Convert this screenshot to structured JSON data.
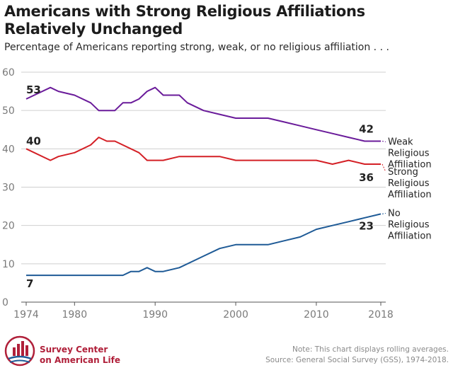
{
  "title": "Americans with Strong Religious Affiliations Relatively Unchanged",
  "subtitle": "Percentage of Americans reporting strong, weak, or no religious affiliation . . .",
  "logo": {
    "line1": "Survey Center",
    "line2": "on American Life"
  },
  "note": "Note: This chart displays rolling averages.",
  "source": "Source: General Social Survey (GSS), 1974-2018.",
  "colors": {
    "weak": "#6a1b9a",
    "strong": "#d42026",
    "none": "#1e5a96",
    "grid": "#cfcfcf",
    "axis_text": "#7a7a7a",
    "brand": "#b0203a"
  },
  "chart_data": {
    "type": "line",
    "title": "Americans with Strong Religious Affiliations Relatively Unchanged",
    "subtitle": "Percentage of Americans reporting strong, weak, or no religious affiliation . . .",
    "xlim": [
      1974,
      2018
    ],
    "ylim": [
      0,
      60
    ],
    "x_ticks": [
      1974,
      1980,
      1990,
      2000,
      2010,
      2018
    ],
    "y_ticks": [
      0,
      10,
      20,
      30,
      40,
      50,
      60
    ],
    "grid": true,
    "series": [
      {
        "key": "weak",
        "name": "Weak Religious Affiliation",
        "label_lines": [
          "Weak",
          "Religious",
          "Affiliation"
        ],
        "start_label": "53",
        "end_label": "42",
        "points": [
          [
            1974,
            53
          ],
          [
            1977,
            56
          ],
          [
            1978,
            55
          ],
          [
            1980,
            54
          ],
          [
            1982,
            52
          ],
          [
            1983,
            50
          ],
          [
            1985,
            50
          ],
          [
            1986,
            52
          ],
          [
            1987,
            52
          ],
          [
            1988,
            53
          ],
          [
            1989,
            55
          ],
          [
            1990,
            56
          ],
          [
            1991,
            54
          ],
          [
            1993,
            54
          ],
          [
            1994,
            52
          ],
          [
            1996,
            50
          ],
          [
            1998,
            49
          ],
          [
            2000,
            48
          ],
          [
            2002,
            48
          ],
          [
            2004,
            48
          ],
          [
            2006,
            47
          ],
          [
            2008,
            46
          ],
          [
            2010,
            45
          ],
          [
            2012,
            44
          ],
          [
            2014,
            43
          ],
          [
            2016,
            42
          ],
          [
            2018,
            42
          ]
        ]
      },
      {
        "key": "strong",
        "name": "Strong Religious Affiliation",
        "label_lines": [
          "Strong",
          "Religious",
          "Affiliation"
        ],
        "start_label": "40",
        "end_label": "36",
        "points": [
          [
            1974,
            40
          ],
          [
            1977,
            37
          ],
          [
            1978,
            38
          ],
          [
            1980,
            39
          ],
          [
            1982,
            41
          ],
          [
            1983,
            43
          ],
          [
            1984,
            42
          ],
          [
            1985,
            42
          ],
          [
            1988,
            39
          ],
          [
            1989,
            37
          ],
          [
            1991,
            37
          ],
          [
            1993,
            38
          ],
          [
            1996,
            38
          ],
          [
            1998,
            38
          ],
          [
            2000,
            37
          ],
          [
            2002,
            37
          ],
          [
            2004,
            37
          ],
          [
            2006,
            37
          ],
          [
            2008,
            37
          ],
          [
            2010,
            37
          ],
          [
            2012,
            36
          ],
          [
            2014,
            37
          ],
          [
            2016,
            36
          ],
          [
            2018,
            36
          ]
        ]
      },
      {
        "key": "none",
        "name": "No Religious Affiliation",
        "label_lines": [
          "No",
          "Religious",
          "Affiliation"
        ],
        "start_label": "7",
        "end_label": "23",
        "points": [
          [
            1974,
            7
          ],
          [
            1977,
            7
          ],
          [
            1980,
            7
          ],
          [
            1982,
            7
          ],
          [
            1984,
            7
          ],
          [
            1986,
            7
          ],
          [
            1987,
            8
          ],
          [
            1988,
            8
          ],
          [
            1989,
            9
          ],
          [
            1990,
            8
          ],
          [
            1991,
            8
          ],
          [
            1993,
            9
          ],
          [
            1996,
            12
          ],
          [
            1998,
            14
          ],
          [
            2000,
            15
          ],
          [
            2002,
            15
          ],
          [
            2004,
            15
          ],
          [
            2006,
            16
          ],
          [
            2008,
            17
          ],
          [
            2010,
            19
          ],
          [
            2012,
            20
          ],
          [
            2014,
            21
          ],
          [
            2016,
            22
          ],
          [
            2018,
            23
          ]
        ]
      }
    ]
  }
}
